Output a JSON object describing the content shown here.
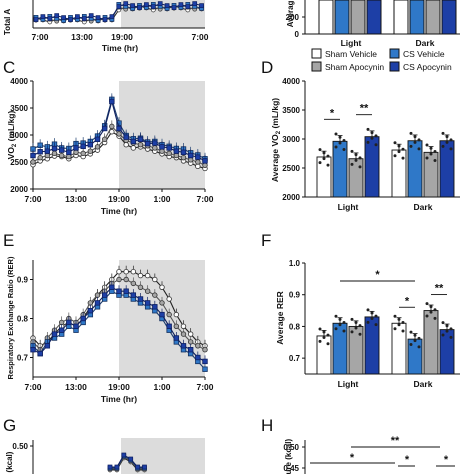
{
  "panel_letters": {
    "C": "C",
    "D": "D",
    "E": "E",
    "F": "F",
    "G": "G",
    "H": "H"
  },
  "legend": {
    "entries": [
      {
        "label": "Sham Vehicle",
        "fill": "#ffffff"
      },
      {
        "label": "CS Vehicle",
        "fill": "#2f78c8"
      },
      {
        "label": "Sham Apocynin",
        "fill": "#a6a6a6"
      },
      {
        "label": "CS Apocynin",
        "fill": "#1d3fa6"
      }
    ]
  },
  "colors": {
    "sham_vehicle": "#ffffff",
    "cs_vehicle": "#2f78c8",
    "sham_apocynin": "#a6a6a6",
    "cs_apocynin": "#1d3fa6",
    "dark_shade": "#dcdcdc"
  },
  "chart_data": [
    {
      "id": "A_partial",
      "type": "line",
      "ylabel": "Total A",
      "xlabel": "Time (hr)",
      "x_ticks": [
        "7:00",
        "13:00",
        "19:00",
        "7:00"
      ],
      "dark_shade": [
        19,
        31
      ]
    },
    {
      "id": "B_partial",
      "type": "bar",
      "ylabel": "Averag",
      "y_ticks": [
        "200",
        "0"
      ],
      "categories": [
        "Light",
        "Dark"
      ]
    },
    {
      "id": "C",
      "type": "line",
      "title": "",
      "xlabel": "Time (hr)",
      "ylabel": "VO2 (mL/kg)",
      "x_ticks": [
        "7:00",
        "13:00",
        "19:00",
        "1:00",
        "7:00"
      ],
      "y_ticks": [
        "2000",
        "2500",
        "3000",
        "3500",
        "4000"
      ],
      "ylim": [
        2000,
        4000
      ],
      "xlim": [
        7,
        31
      ],
      "dark_shade": [
        19,
        31
      ],
      "x": [
        7,
        8,
        9,
        10,
        11,
        12,
        13,
        14,
        15,
        16,
        17,
        18,
        19,
        20,
        21,
        22,
        23,
        24,
        25,
        26,
        27,
        28,
        29,
        30,
        31
      ],
      "series": [
        {
          "key": "sham_vehicle",
          "values": [
            2450,
            2520,
            2560,
            2610,
            2600,
            2560,
            2620,
            2600,
            2650,
            2720,
            2860,
            3060,
            2980,
            2820,
            2760,
            2780,
            2740,
            2700,
            2650,
            2600,
            2580,
            2520,
            2480,
            2420,
            2380
          ]
        },
        {
          "key": "sham_apocynin",
          "values": [
            2500,
            2580,
            2620,
            2660,
            2620,
            2600,
            2680,
            2660,
            2700,
            2780,
            2920,
            3160,
            3020,
            2900,
            2850,
            2820,
            2800,
            2760,
            2700,
            2660,
            2620,
            2580,
            2540,
            2500,
            2440
          ]
        },
        {
          "key": "cs_vehicle",
          "values": [
            2740,
            2810,
            2780,
            2830,
            2760,
            2750,
            2840,
            2850,
            2880,
            2980,
            3170,
            3660,
            3220,
            2990,
            2930,
            2940,
            2870,
            2880,
            2820,
            2790,
            2750,
            2740,
            2670,
            2630,
            2560
          ]
        },
        {
          "key": "cs_apocynin",
          "values": [
            2620,
            2690,
            2700,
            2750,
            2720,
            2680,
            2760,
            2790,
            2820,
            2920,
            3120,
            3620,
            3120,
            2960,
            2880,
            2920,
            2840,
            2850,
            2780,
            2760,
            2700,
            2680,
            2620,
            2590,
            2520
          ]
        }
      ]
    },
    {
      "id": "D",
      "type": "bar",
      "ylabel": "Average VO2 (mL/kg)",
      "y_ticks": [
        "2000",
        "2500",
        "3000",
        "3500",
        "4000"
      ],
      "ylim": [
        2000,
        4000
      ],
      "categories": [
        "Light",
        "Dark"
      ],
      "series": [
        {
          "key": "sham_vehicle",
          "values": [
            2690,
            2810
          ]
        },
        {
          "key": "cs_vehicle",
          "values": [
            2960,
            2970
          ]
        },
        {
          "key": "sham_apocynin",
          "values": [
            2660,
            2770
          ]
        },
        {
          "key": "cs_apocynin",
          "values": [
            3040,
            2970
          ]
        }
      ],
      "significance": [
        {
          "label": "*",
          "group": 0,
          "from": 0,
          "to": 1
        },
        {
          "label": "**",
          "group": 0,
          "from": 2,
          "to": 3
        }
      ]
    },
    {
      "id": "E",
      "type": "line",
      "xlabel": "Time (hr)",
      "ylabel": "Respiratory Exchange Ratio (RER)",
      "x_ticks": [
        "7:00",
        "13:00",
        "19:00",
        "1:00",
        "7:00"
      ],
      "y_ticks": [
        "0.7",
        "0.8",
        "0.9"
      ],
      "ylim": [
        0.65,
        0.95
      ],
      "xlim": [
        7,
        31
      ],
      "dark_shade": [
        19,
        31
      ],
      "x": [
        7,
        8,
        9,
        10,
        11,
        12,
        13,
        14,
        15,
        16,
        17,
        18,
        19,
        20,
        21,
        22,
        23,
        24,
        25,
        26,
        27,
        28,
        29,
        30,
        31
      ],
      "series": [
        {
          "key": "sham_vehicle",
          "values": [
            0.75,
            0.73,
            0.74,
            0.76,
            0.78,
            0.79,
            0.78,
            0.8,
            0.83,
            0.86,
            0.88,
            0.9,
            0.92,
            0.92,
            0.92,
            0.91,
            0.91,
            0.9,
            0.88,
            0.85,
            0.81,
            0.78,
            0.76,
            0.74,
            0.73
          ]
        },
        {
          "key": "sham_apocynin",
          "values": [
            0.74,
            0.72,
            0.75,
            0.77,
            0.79,
            0.8,
            0.79,
            0.81,
            0.84,
            0.86,
            0.87,
            0.89,
            0.9,
            0.9,
            0.89,
            0.88,
            0.87,
            0.86,
            0.84,
            0.81,
            0.78,
            0.76,
            0.74,
            0.73,
            0.72
          ]
        },
        {
          "key": "cs_vehicle",
          "values": [
            0.73,
            0.71,
            0.74,
            0.75,
            0.76,
            0.78,
            0.77,
            0.79,
            0.81,
            0.83,
            0.85,
            0.87,
            0.86,
            0.86,
            0.85,
            0.84,
            0.83,
            0.82,
            0.8,
            0.77,
            0.74,
            0.72,
            0.71,
            0.69,
            0.67
          ]
        },
        {
          "key": "cs_apocynin",
          "values": [
            0.72,
            0.71,
            0.73,
            0.76,
            0.77,
            0.79,
            0.78,
            0.8,
            0.82,
            0.84,
            0.86,
            0.88,
            0.87,
            0.87,
            0.86,
            0.85,
            0.84,
            0.83,
            0.81,
            0.78,
            0.75,
            0.73,
            0.72,
            0.7,
            0.69
          ]
        }
      ]
    },
    {
      "id": "F",
      "type": "bar",
      "ylabel": "Average RER",
      "y_ticks": [
        "0.7",
        "0.8",
        "0.9",
        "1.0"
      ],
      "ylim": [
        0.65,
        1.0
      ],
      "categories": [
        "Light",
        "Dark"
      ],
      "series": [
        {
          "key": "sham_vehicle",
          "values": [
            0.77,
            0.81
          ]
        },
        {
          "key": "cs_vehicle",
          "values": [
            0.81,
            0.76
          ]
        },
        {
          "key": "sham_apocynin",
          "values": [
            0.8,
            0.85
          ]
        },
        {
          "key": "cs_apocynin",
          "values": [
            0.83,
            0.79
          ]
        }
      ],
      "significance": [
        {
          "label": "*",
          "span": "light_cs_vehicle_to_dark_cs_vehicle"
        },
        {
          "label": "*",
          "group": 1,
          "from": 0,
          "to": 1
        },
        {
          "label": "**",
          "group": 1,
          "from": 2,
          "to": 3
        }
      ]
    },
    {
      "id": "G_partial",
      "type": "line",
      "ylabel": "(kcal)",
      "y_ticks": [
        "0.50"
      ],
      "dark_shade": [
        19,
        31
      ]
    },
    {
      "id": "H_partial",
      "type": "bar",
      "ylabel": "ture (kcal)",
      "y_ticks": [
        "0.50",
        "0.45"
      ],
      "significance_labels": [
        "**",
        "*",
        "*",
        "*"
      ]
    }
  ]
}
